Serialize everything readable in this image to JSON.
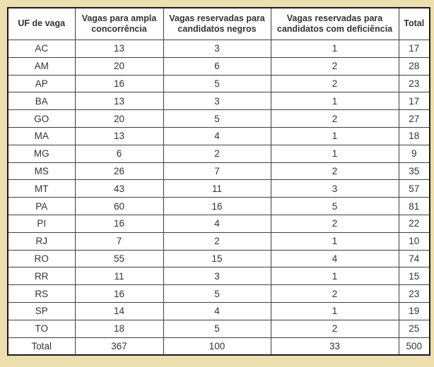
{
  "page": {
    "background_color": "#EDE0AE",
    "cell_background": "#FFFFFF",
    "grid_border_color": "#3F3F3F",
    "outer_border_color": "#1A1A1A",
    "text_color": "#333333"
  },
  "table": {
    "columns": [
      "UF de vaga",
      "Vagas para ampla concorrência",
      "Vagas reservadas para candidatos negros",
      "Vagas reservadas para candidatos com deficiência",
      "Total"
    ],
    "rows": [
      [
        "AC",
        "13",
        "3",
        "1",
        "17"
      ],
      [
        "AM",
        "20",
        "6",
        "2",
        "28"
      ],
      [
        "AP",
        "16",
        "5",
        "2",
        "23"
      ],
      [
        "BA",
        "13",
        "3",
        "1",
        "17"
      ],
      [
        "GO",
        "20",
        "5",
        "2",
        "27"
      ],
      [
        "MA",
        "13",
        "4",
        "1",
        "18"
      ],
      [
        "MG",
        "6",
        "2",
        "1",
        "9"
      ],
      [
        "MS",
        "26",
        "7",
        "2",
        "35"
      ],
      [
        "MT",
        "43",
        "11",
        "3",
        "57"
      ],
      [
        "PA",
        "60",
        "16",
        "5",
        "81"
      ],
      [
        "PI",
        "16",
        "4",
        "2",
        "22"
      ],
      [
        "RJ",
        "7",
        "2",
        "1",
        "10"
      ],
      [
        "RO",
        "55",
        "15",
        "4",
        "74"
      ],
      [
        "RR",
        "11",
        "3",
        "1",
        "15"
      ],
      [
        "RS",
        "16",
        "5",
        "2",
        "23"
      ],
      [
        "SP",
        "14",
        "4",
        "1",
        "19"
      ],
      [
        "TO",
        "18",
        "5",
        "2",
        "25"
      ],
      [
        "Total",
        "367",
        "100",
        "33",
        "500"
      ]
    ]
  }
}
